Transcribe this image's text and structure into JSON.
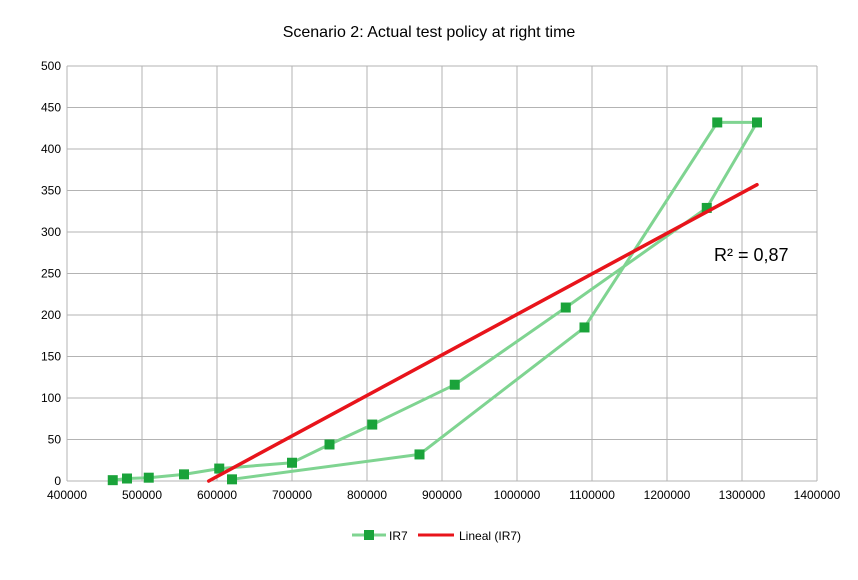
{
  "chart_data": {
    "type": "scatter",
    "title": "Scenario 2: Actual test policy at right time",
    "xlabel": "",
    "ylabel": "",
    "xlim": [
      400000,
      1400000
    ],
    "ylim": [
      0,
      500
    ],
    "x_ticks": [
      "400000",
      "500000",
      "600000",
      "700000",
      "800000",
      "900000",
      "1000000",
      "1100000",
      "1200000",
      "1300000",
      "1400000"
    ],
    "y_ticks": [
      "0",
      "50",
      "100",
      "150",
      "200",
      "250",
      "300",
      "350",
      "400",
      "450",
      "500"
    ],
    "grid": true,
    "legend_position": "bottom",
    "series": [
      {
        "name": "IR7",
        "color": "#7fd491",
        "marker_color": "#1aa33a",
        "points": [
          [
            461000,
            1
          ],
          [
            480000,
            3
          ],
          [
            509000,
            4
          ],
          [
            556000,
            8
          ],
          [
            603000,
            15
          ],
          [
            700000,
            22
          ],
          [
            750000,
            44
          ],
          [
            807000,
            68
          ],
          [
            917000,
            116
          ],
          [
            1065000,
            209
          ],
          [
            1253000,
            329
          ],
          [
            1320000,
            432
          ],
          [
            1267000,
            432
          ],
          [
            1090000,
            185
          ],
          [
            870000,
            32
          ],
          [
            620000,
            2
          ]
        ]
      }
    ],
    "trendline": {
      "name": "Lineal (IR7)",
      "color": "#e8141b",
      "type": "linear",
      "x_range": [
        589000,
        1320000
      ],
      "y_range": [
        0,
        357
      ],
      "r2_label": "R² = 0,87"
    }
  }
}
